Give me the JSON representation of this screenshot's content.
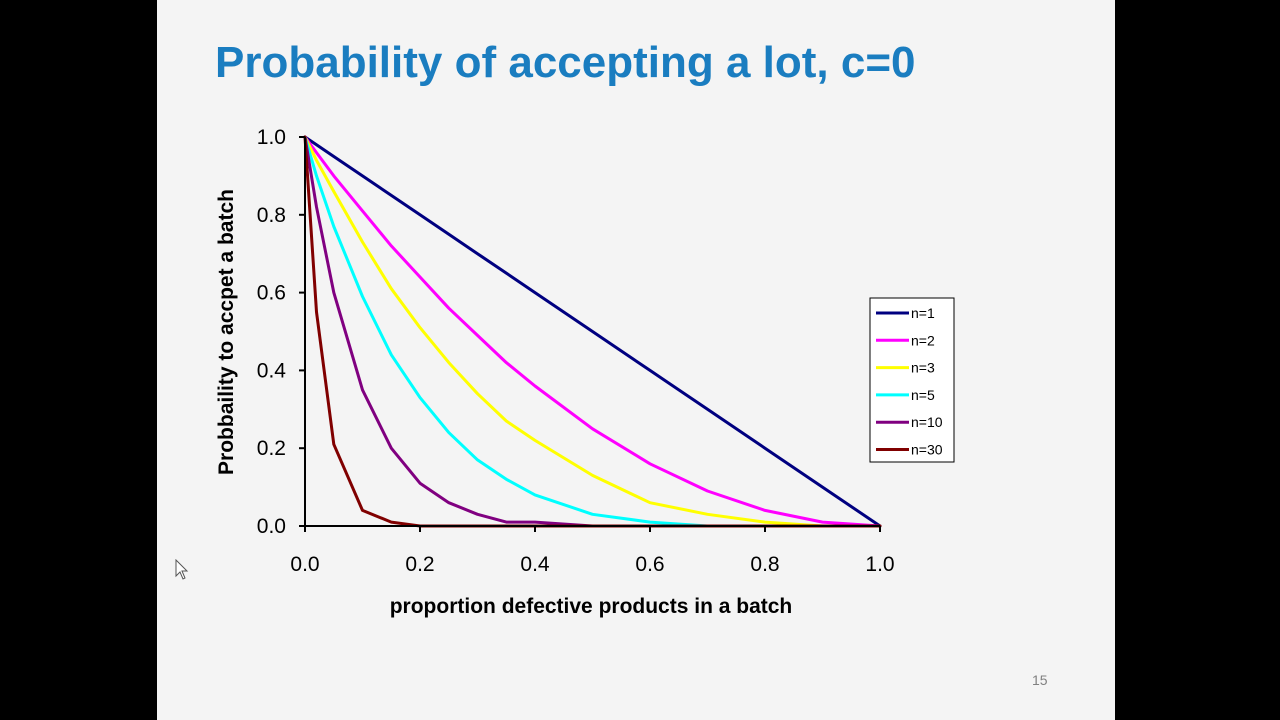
{
  "slide": {
    "title": "Probability of accepting a lot, c=0",
    "page_number": "15"
  },
  "chart_data": {
    "type": "line",
    "title": "Probability of accepting a lot, c=0",
    "xlabel": "proportion defective products in a batch",
    "ylabel": "Probbaility to accpet a batch",
    "xlim": [
      0,
      1
    ],
    "ylim": [
      0,
      1
    ],
    "x_ticks": [
      "0.0",
      "0.2",
      "0.4",
      "0.6",
      "0.8",
      "1.0"
    ],
    "y_ticks": [
      "0.0",
      "0.2",
      "0.4",
      "0.6",
      "0.8",
      "1.0"
    ],
    "grid": false,
    "legend_position": "right",
    "x": [
      0.0,
      0.02,
      0.05,
      0.1,
      0.15,
      0.2,
      0.25,
      0.3,
      0.35,
      0.4,
      0.5,
      0.6,
      0.7,
      0.8,
      0.9,
      1.0
    ],
    "series": [
      {
        "name": "n=1",
        "color": "#000080",
        "values": [
          1.0,
          0.98,
          0.95,
          0.9,
          0.85,
          0.8,
          0.75,
          0.7,
          0.65,
          0.6,
          0.5,
          0.4,
          0.3,
          0.2,
          0.1,
          0.0
        ]
      },
      {
        "name": "n=2",
        "color": "#ff00ff",
        "values": [
          1.0,
          0.96,
          0.9,
          0.81,
          0.72,
          0.64,
          0.56,
          0.49,
          0.42,
          0.36,
          0.25,
          0.16,
          0.09,
          0.04,
          0.01,
          0.0
        ]
      },
      {
        "name": "n=3",
        "color": "#ffff00",
        "values": [
          1.0,
          0.94,
          0.86,
          0.73,
          0.61,
          0.51,
          0.42,
          0.34,
          0.27,
          0.22,
          0.13,
          0.06,
          0.03,
          0.01,
          0.0,
          0.0
        ]
      },
      {
        "name": "n=5",
        "color": "#00ffff",
        "values": [
          1.0,
          0.9,
          0.77,
          0.59,
          0.44,
          0.33,
          0.24,
          0.17,
          0.12,
          0.08,
          0.03,
          0.01,
          0.0,
          0.0,
          0.0,
          0.0
        ]
      },
      {
        "name": "n=10",
        "color": "#800080",
        "values": [
          1.0,
          0.82,
          0.6,
          0.35,
          0.2,
          0.11,
          0.06,
          0.03,
          0.01,
          0.01,
          0.0,
          0.0,
          0.0,
          0.0,
          0.0,
          0.0
        ]
      },
      {
        "name": "n=30",
        "color": "#800000",
        "values": [
          1.0,
          0.55,
          0.21,
          0.04,
          0.01,
          0.0,
          0.0,
          0.0,
          0.0,
          0.0,
          0.0,
          0.0,
          0.0,
          0.0,
          0.0,
          0.0
        ]
      }
    ]
  }
}
